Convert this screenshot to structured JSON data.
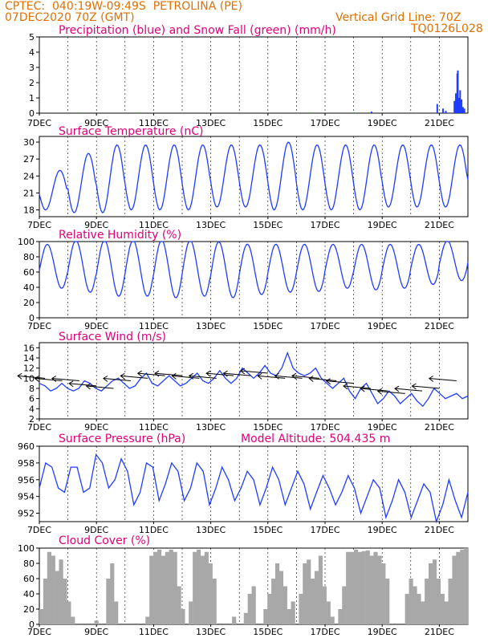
{
  "header": {
    "line1_left": "CPTEC:  040:19W-09:49S  PETROLINA (PE)",
    "line2_left": "07DEC2020 70Z (GMT)",
    "line2_right": "Vertical Grid Line: 70Z",
    "line3_right": "TQ0126L028"
  },
  "x_ticks": [
    "7DEC",
    "9DEC",
    "11DEC",
    "13DEC",
    "15DEC",
    "17DEC",
    "19DEC",
    "21DEC"
  ],
  "x_tick_days": [
    7,
    9,
    11,
    13,
    15,
    17,
    19,
    21
  ],
  "x_range": [
    7,
    22
  ],
  "chart_data": [
    {
      "id": "precip",
      "type": "bar",
      "title": "Precipitation (blue) and Snow Fall (green) (mm/h)",
      "ylim": [
        0,
        5
      ],
      "yticks": [
        "0",
        "1",
        "2",
        "3",
        "4",
        "5"
      ],
      "series": [
        {
          "name": "blue",
          "color": "#1f3cff",
          "points": [
            [
              18.6,
              0.1
            ],
            [
              20.9,
              0.6
            ],
            [
              21.1,
              0.3
            ],
            [
              21.2,
              0.15
            ],
            [
              21.5,
              0.8
            ],
            [
              21.55,
              1.3
            ],
            [
              21.6,
              2.6
            ],
            [
              21.62,
              2.8
            ],
            [
              21.65,
              1.0
            ],
            [
              21.7,
              1.5
            ],
            [
              21.75,
              0.9
            ],
            [
              21.8,
              0.4
            ],
            [
              21.85,
              0.3
            ]
          ]
        },
        {
          "name": "green",
          "color": "#22aa22",
          "points": [
            [
              8.3,
              0.05
            ],
            [
              10.4,
              0.05
            ],
            [
              16.5,
              0.05
            ],
            [
              18.0,
              0.05
            ]
          ]
        }
      ]
    },
    {
      "id": "temp",
      "type": "line",
      "title": "Surface Temperature (nC)",
      "ylim": [
        16.8,
        31
      ],
      "yticks": [
        "18",
        "21",
        "24",
        "27",
        "30"
      ],
      "ytick_values": [
        18,
        21,
        24,
        27,
        30
      ],
      "daily_max": [
        25,
        28,
        29.5,
        29.5,
        29.5,
        29.5,
        29.5,
        29.5,
        30,
        29.5,
        29.5,
        29.5,
        29.5,
        29.5,
        29.5,
        26
      ],
      "daily_min": [
        18,
        17.5,
        17.5,
        18,
        18,
        18,
        18.5,
        18.5,
        18,
        18,
        18,
        18,
        18.5,
        18.5,
        18.5,
        21.5
      ],
      "color": "#1f3cff"
    },
    {
      "id": "rh",
      "type": "line",
      "title": "Relative Humidity (%)",
      "ylim": [
        0,
        100
      ],
      "yticks": [
        "0",
        "20",
        "40",
        "60",
        "80",
        "100"
      ],
      "ytick_values": [
        0,
        20,
        40,
        60,
        80,
        100
      ],
      "daily_max": [
        95,
        100,
        100,
        100,
        100,
        100,
        98,
        95,
        95,
        95,
        95,
        95,
        95,
        95,
        100,
        100
      ],
      "daily_min": [
        40,
        35,
        30,
        30,
        28,
        30,
        28,
        32,
        35,
        36,
        40,
        38,
        40,
        45,
        50,
        55
      ],
      "color": "#1f3cff"
    },
    {
      "id": "wind",
      "type": "line",
      "title": "Surface Wind (m/s)",
      "ylim": [
        2,
        17
      ],
      "yticks": [
        "2",
        "4",
        "6",
        "8",
        "10",
        "12",
        "14",
        "16"
      ],
      "ytick_values": [
        2,
        4,
        6,
        8,
        10,
        12,
        14,
        16
      ],
      "values": [
        9,
        8.5,
        7.5,
        8,
        9,
        8,
        7.5,
        8,
        9.5,
        9,
        8,
        7.5,
        8.5,
        9.5,
        10,
        9,
        8,
        8.5,
        10,
        11,
        9,
        8.5,
        9.5,
        10.5,
        9.5,
        8.5,
        9,
        10,
        11,
        9.5,
        9,
        10,
        11.5,
        10,
        9,
        10,
        12,
        11,
        10,
        11,
        12.5,
        11,
        10.5,
        12,
        15,
        12,
        11,
        10.5,
        11,
        12,
        10,
        9,
        8,
        9,
        10,
        7.5,
        6,
        8,
        9,
        7,
        5,
        6,
        7.5,
        6.5,
        5,
        6,
        7,
        5.5,
        4.5,
        6,
        8,
        7,
        6,
        6.5,
        7,
        6,
        6.5
      ],
      "arrow_days": [
        7.2,
        7.8,
        8.4,
        9.0,
        9.6,
        10.2,
        10.8,
        11.4,
        12.0,
        12.6,
        13.2,
        13.8,
        14.4,
        15.0,
        15.6,
        16.2,
        16.8,
        17.4,
        18.0,
        18.6,
        19.2,
        19.8,
        20.4,
        21.0,
        21.6
      ],
      "arrow_speeds": [
        10,
        9.5,
        9.5,
        8.5,
        8,
        9.5,
        10,
        10.5,
        10.5,
        10,
        10,
        10.5,
        10.5,
        11,
        10,
        10,
        10,
        9.5,
        9,
        8,
        7.5,
        7,
        7.5,
        8,
        9.5
      ],
      "color": "#1f3cff"
    },
    {
      "id": "pres",
      "type": "line",
      "title": "Surface Pressure (hPa)",
      "subtitle": "Model Altitude: 504.435  m",
      "ylim": [
        951,
        960
      ],
      "yticks": [
        "952",
        "954",
        "956",
        "958",
        "960"
      ],
      "ytick_values": [
        952,
        954,
        956,
        958,
        960
      ],
      "values": [
        955,
        958,
        957.5,
        955,
        954.5,
        957.5,
        957.5,
        954.5,
        955,
        959,
        958,
        955,
        956,
        958.5,
        957,
        953,
        954.5,
        958,
        957.5,
        953.5,
        955.5,
        958,
        957,
        953.5,
        955,
        958,
        957,
        953,
        955,
        957.5,
        956,
        953.5,
        955,
        957,
        956,
        953,
        955,
        957.5,
        956,
        953,
        955,
        957,
        955.5,
        952.5,
        954.5,
        956.5,
        955,
        953,
        954.5,
        956.5,
        955,
        952,
        954,
        956,
        955,
        951.5,
        953.5,
        956,
        954.5,
        951.5,
        953.5,
        955.5,
        954.5,
        951,
        953,
        956,
        953.5,
        951.5,
        954.5
      ],
      "color": "#1f3cff"
    },
    {
      "id": "cloud",
      "type": "bar",
      "title": "Cloud Cover (%)",
      "ylim": [
        0,
        100
      ],
      "yticks": [
        "0",
        "20",
        "40",
        "60",
        "80",
        "100"
      ],
      "ytick_values": [
        0,
        20,
        40,
        60,
        80,
        100
      ],
      "values": [
        20,
        60,
        95,
        90,
        70,
        85,
        60,
        30,
        10,
        0,
        0,
        0,
        0,
        0,
        5,
        0,
        0,
        60,
        80,
        30,
        0,
        0,
        0,
        0,
        0,
        0,
        0,
        10,
        90,
        95,
        98,
        90,
        95,
        98,
        95,
        50,
        20,
        0,
        30,
        95,
        98,
        90,
        95,
        80,
        60,
        0,
        0,
        0,
        0,
        10,
        0,
        0,
        15,
        40,
        50,
        0,
        0,
        20,
        40,
        60,
        80,
        70,
        50,
        20,
        30,
        0,
        40,
        80,
        85,
        60,
        70,
        90,
        50,
        30,
        10,
        0,
        20,
        50,
        95,
        95,
        98,
        95,
        96,
        97,
        90,
        95,
        90,
        80,
        60,
        0,
        0,
        0,
        0,
        40,
        60,
        50,
        40,
        30,
        60,
        80,
        85,
        60,
        40,
        30,
        60,
        90,
        95,
        98,
        100
      ],
      "color": "#a8a8a8"
    }
  ]
}
